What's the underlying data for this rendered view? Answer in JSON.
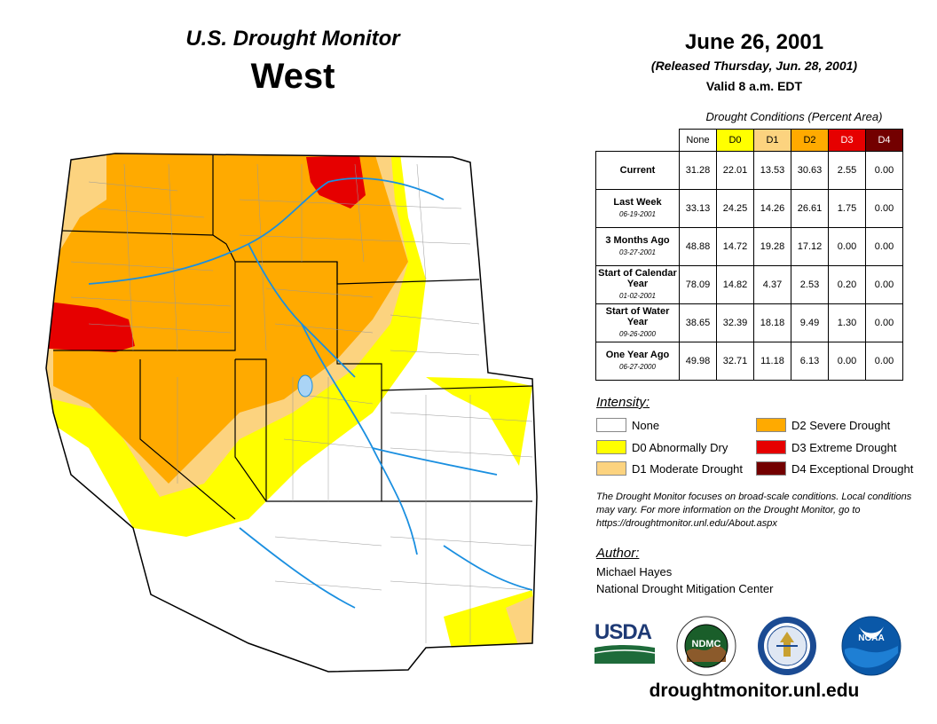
{
  "header": {
    "title": "U.S. Drought Monitor",
    "region": "West",
    "date": "June 26, 2001",
    "released": "(Released Thursday, Jun. 28, 2001)",
    "valid": "Valid 8 a.m. EDT"
  },
  "table": {
    "caption": "Drought Conditions (Percent Area)",
    "columns": [
      "None",
      "D0",
      "D1",
      "D2",
      "D3",
      "D4"
    ],
    "column_colors": [
      "#ffffff",
      "#ffff00",
      "#fcd37f",
      "#ffaa00",
      "#e60000",
      "#730000"
    ],
    "rows": [
      {
        "label": "Current",
        "sub": "",
        "values": [
          "31.28",
          "22.01",
          "13.53",
          "30.63",
          "2.55",
          "0.00"
        ]
      },
      {
        "label": "Last Week",
        "sub": "06-19-2001",
        "values": [
          "33.13",
          "24.25",
          "14.26",
          "26.61",
          "1.75",
          "0.00"
        ]
      },
      {
        "label": "3 Months Ago",
        "sub": "03-27-2001",
        "values": [
          "48.88",
          "14.72",
          "19.28",
          "17.12",
          "0.00",
          "0.00"
        ]
      },
      {
        "label": "Start of Calendar Year",
        "sub": "01-02-2001",
        "values": [
          "78.09",
          "14.82",
          "4.37",
          "2.53",
          "0.20",
          "0.00"
        ]
      },
      {
        "label": "Start of Water Year",
        "sub": "09-26-2000",
        "values": [
          "38.65",
          "32.39",
          "18.18",
          "9.49",
          "1.30",
          "0.00"
        ]
      },
      {
        "label": "One Year Ago",
        "sub": "06-27-2000",
        "values": [
          "49.98",
          "32.71",
          "11.18",
          "6.13",
          "0.00",
          "0.00"
        ]
      }
    ]
  },
  "legend": {
    "title": "Intensity:",
    "items": [
      {
        "label": "None",
        "color": "#ffffff"
      },
      {
        "label": "D0 Abnormally Dry",
        "color": "#ffff00"
      },
      {
        "label": "D1 Moderate Drought",
        "color": "#fcd37f"
      },
      {
        "label": "D2 Severe Drought",
        "color": "#ffaa00"
      },
      {
        "label": "D3 Extreme Drought",
        "color": "#e60000"
      },
      {
        "label": "D4 Exceptional Drought",
        "color": "#730000"
      }
    ]
  },
  "note": "The Drought Monitor focuses on broad-scale conditions. Local conditions may vary. For more information on the Drought Monitor, go to https://droughtmonitor.unl.edu/About.aspx",
  "author": {
    "title": "Author:",
    "name": "Michael Hayes",
    "organization": "National Drought Mitigation Center"
  },
  "logos": {
    "usda": "USDA",
    "ndmc": "NDMC",
    "noaa": "NOAA"
  },
  "url": "droughtmonitor.unl.edu"
}
